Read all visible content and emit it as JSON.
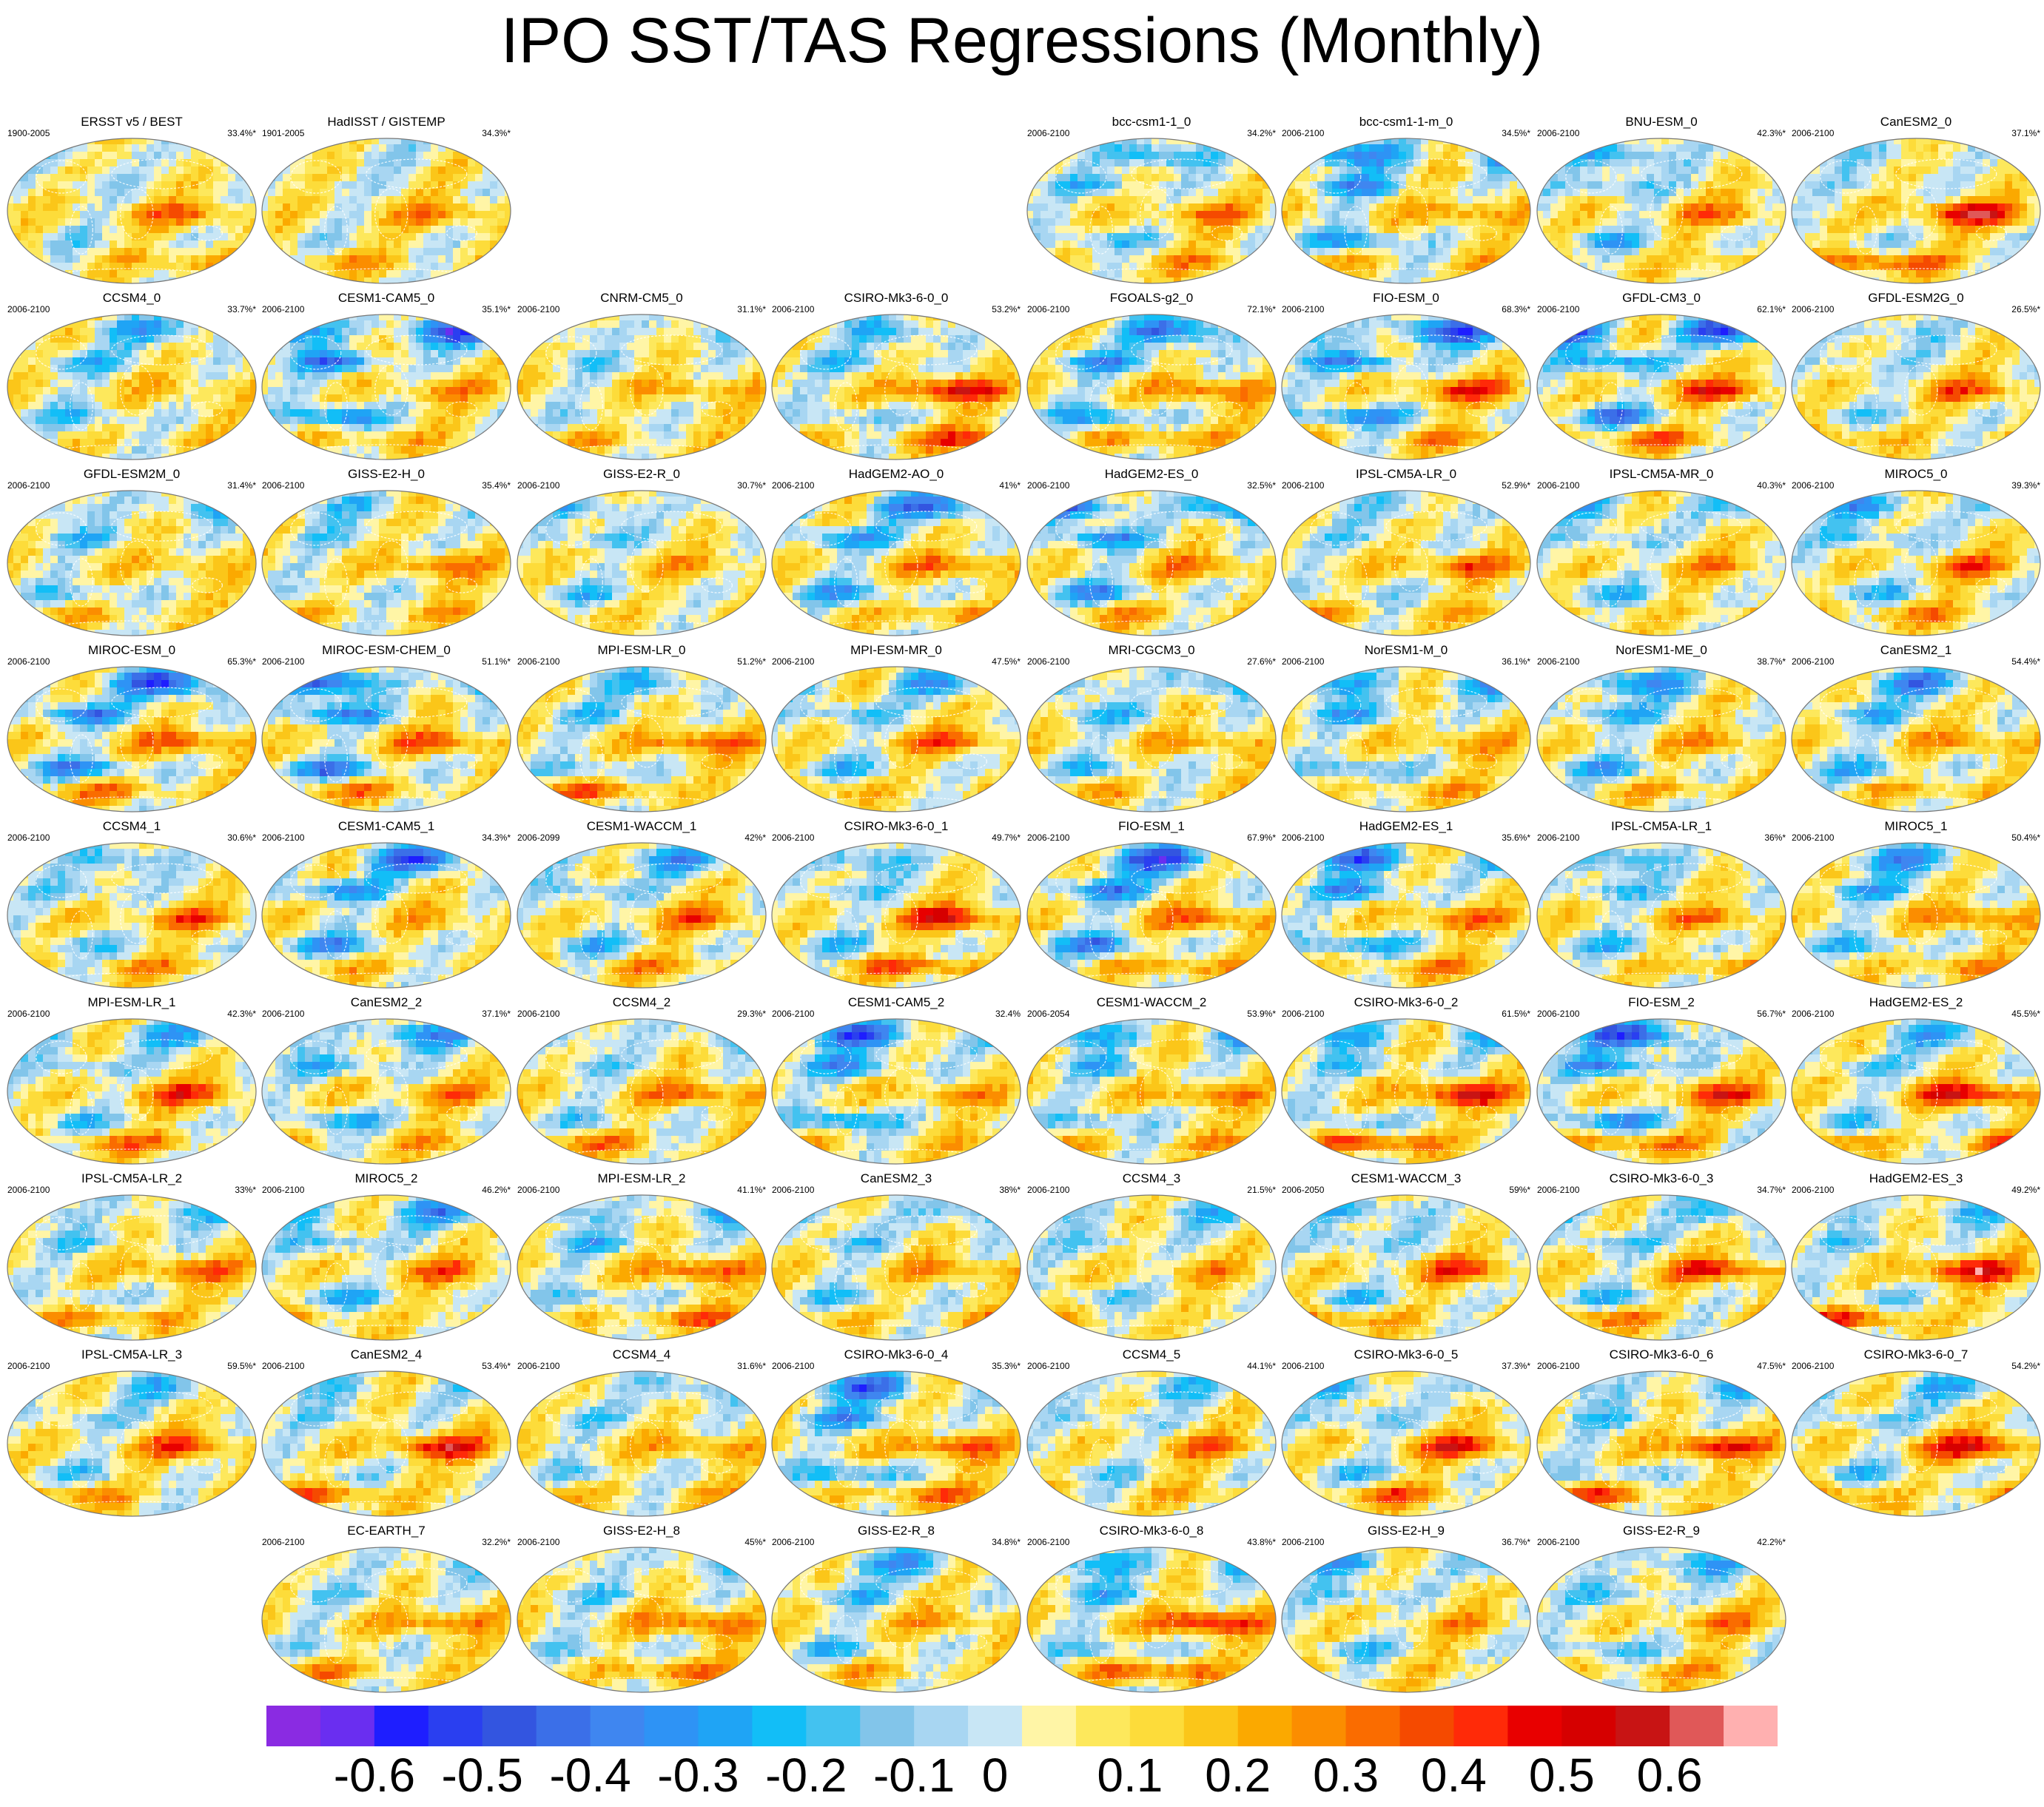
{
  "title": "IPO SST/TAS Regressions (Monthly)",
  "chart_data": {
    "type": "heatmap",
    "title": "IPO SST/TAS Regressions (Monthly)",
    "colorbar": {
      "colors": [
        "#8a2be2",
        "#6a2ef0",
        "#1e1eff",
        "#2a3ff0",
        "#3355e0",
        "#3b6fe8",
        "#3f86f0",
        "#2e93f5",
        "#1fa4f5",
        "#12bef7",
        "#43c2f0",
        "#82c5ea",
        "#a8d6f2",
        "#c8e6f5",
        "#fff5a6",
        "#fde85c",
        "#fddc3a",
        "#fbc619",
        "#fba900",
        "#fb8d00",
        "#fa6c00",
        "#f54a00",
        "#ff2a08",
        "#e80000",
        "#d60000",
        "#c81414",
        "#e05858",
        "#ffb0b0"
      ],
      "tick_labels": [
        "-0.6",
        "-0.5",
        "-0.4",
        "-0.3",
        "-0.2",
        "-0.1",
        "0",
        "0.1",
        "0.2",
        "0.3",
        "0.4",
        "0.5",
        "0.6"
      ],
      "tick_values": [
        -0.6,
        -0.5,
        -0.4,
        -0.3,
        -0.2,
        -0.1,
        0,
        0.1,
        0.2,
        0.3,
        0.4,
        0.5,
        0.6
      ],
      "range": [
        -0.65,
        0.65
      ]
    },
    "panels": [
      {
        "model": "ERSST v5 / BEST",
        "period": "1900-2005",
        "pct": "33.4%*",
        "warm": 0.35,
        "cold": 0.15
      },
      {
        "model": "HadISST / GISTEMP",
        "period": "1901-2005",
        "pct": "34.3%*",
        "warm": 0.3,
        "cold": 0.1
      },
      {
        "model": "bcc-csm1-1_0",
        "period": "2006-2100",
        "pct": "34.2%*",
        "warm": 0.3,
        "cold": 0.35
      },
      {
        "model": "bcc-csm1-1-m_0",
        "period": "2006-2100",
        "pct": "34.5%*",
        "warm": 0.3,
        "cold": 0.5
      },
      {
        "model": "BNU-ESM_0",
        "period": "2006-2100",
        "pct": "42.3%*",
        "warm": 0.3,
        "cold": 0.35
      },
      {
        "model": "CanESM2_0",
        "period": "2006-2100",
        "pct": "37.1%*",
        "warm": 0.6,
        "cold": 0.15
      },
      {
        "model": "CCSM4_0",
        "period": "2006-2100",
        "pct": "33.7%*",
        "warm": 0.15,
        "cold": 0.35
      },
      {
        "model": "CESM1-CAM5_0",
        "period": "2006-2100",
        "pct": "35.1%*",
        "warm": 0.25,
        "cold": 0.6
      },
      {
        "model": "CNRM-CM5_0",
        "period": "2006-2100",
        "pct": "31.1%*",
        "warm": 0.25,
        "cold": 0.2
      },
      {
        "model": "CSIRO-Mk3-6-0_0",
        "period": "2006-2100",
        "pct": "53.2%*",
        "warm": 0.6,
        "cold": 0.3
      },
      {
        "model": "FGOALS-g2_0",
        "period": "2006-2100",
        "pct": "72.1%*",
        "warm": 0.4,
        "cold": 0.5
      },
      {
        "model": "FIO-ESM_0",
        "period": "2006-2100",
        "pct": "68.3%*",
        "warm": 0.45,
        "cold": 0.6
      },
      {
        "model": "GFDL-CM3_0",
        "period": "2006-2100",
        "pct": "62.1%*",
        "warm": 0.45,
        "cold": 0.6
      },
      {
        "model": "GFDL-ESM2G_0",
        "period": "2006-2100",
        "pct": "26.5%*",
        "warm": 0.35,
        "cold": 0.2
      },
      {
        "model": "GFDL-ESM2M_0",
        "period": "2006-2100",
        "pct": "31.4%*",
        "warm": 0.2,
        "cold": 0.3
      },
      {
        "model": "GISS-E2-H_0",
        "period": "2006-2100",
        "pct": "35.4%*",
        "warm": 0.35,
        "cold": 0.2
      },
      {
        "model": "GISS-E2-R_0",
        "period": "2006-2100",
        "pct": "30.7%*",
        "warm": 0.2,
        "cold": 0.3
      },
      {
        "model": "HadGEM2-AO_0",
        "period": "2006-2100",
        "pct": "41%*",
        "warm": 0.35,
        "cold": 0.5
      },
      {
        "model": "HadGEM2-ES_0",
        "period": "2006-2100",
        "pct": "32.5%*",
        "warm": 0.3,
        "cold": 0.55
      },
      {
        "model": "IPSL-CM5A-LR_0",
        "period": "2006-2100",
        "pct": "52.9%*",
        "warm": 0.4,
        "cold": 0.2
      },
      {
        "model": "IPSL-CM5A-MR_0",
        "period": "2006-2100",
        "pct": "40.3%*",
        "warm": 0.25,
        "cold": 0.3
      },
      {
        "model": "MIROC5_0",
        "period": "2006-2100",
        "pct": "39.3%*",
        "warm": 0.35,
        "cold": 0.35
      },
      {
        "model": "MIROC-ESM_0",
        "period": "2006-2100",
        "pct": "65.3%*",
        "warm": 0.4,
        "cold": 0.6
      },
      {
        "model": "MIROC-ESM-CHEM_0",
        "period": "2006-2100",
        "pct": "51.1%*",
        "warm": 0.4,
        "cold": 0.6
      },
      {
        "model": "MPI-ESM-LR_0",
        "period": "2006-2100",
        "pct": "51.2%*",
        "warm": 0.45,
        "cold": 0.3
      },
      {
        "model": "MPI-ESM-MR_0",
        "period": "2006-2100",
        "pct": "47.5%*",
        "warm": 0.35,
        "cold": 0.35
      },
      {
        "model": "MRI-CGCM3_0",
        "period": "2006-2100",
        "pct": "27.6%*",
        "warm": 0.25,
        "cold": 0.35
      },
      {
        "model": "NorESM1-M_0",
        "period": "2006-2100",
        "pct": "36.1%*",
        "warm": 0.25,
        "cold": 0.4
      },
      {
        "model": "NorESM1-ME_0",
        "period": "2006-2100",
        "pct": "38.7%*",
        "warm": 0.25,
        "cold": 0.45
      },
      {
        "model": "CanESM2_1",
        "period": "2006-2100",
        "pct": "54.4%*",
        "warm": 0.3,
        "cold": 0.4
      },
      {
        "model": "CCSM4_1",
        "period": "2006-2100",
        "pct": "30.6%*",
        "warm": 0.35,
        "cold": 0.3
      },
      {
        "model": "CESM1-CAM5_1",
        "period": "2006-2100",
        "pct": "34.3%*",
        "warm": 0.2,
        "cold": 0.55
      },
      {
        "model": "CESM1-WACCM_1",
        "period": "2006-2099",
        "pct": "42%*",
        "warm": 0.35,
        "cold": 0.35
      },
      {
        "model": "CSIRO-Mk3-6-0_1",
        "period": "2006-2100",
        "pct": "49.7%*",
        "warm": 0.55,
        "cold": 0.3
      },
      {
        "model": "FIO-ESM_1",
        "period": "2006-2100",
        "pct": "67.9%*",
        "warm": 0.4,
        "cold": 0.6
      },
      {
        "model": "HadGEM2-ES_1",
        "period": "2006-2100",
        "pct": "35.6%*",
        "warm": 0.35,
        "cold": 0.5
      },
      {
        "model": "IPSL-CM5A-LR_1",
        "period": "2006-2100",
        "pct": "36%*",
        "warm": 0.3,
        "cold": 0.35
      },
      {
        "model": "MIROC5_1",
        "period": "2006-2100",
        "pct": "50.4%*",
        "warm": 0.35,
        "cold": 0.4
      },
      {
        "model": "MPI-ESM-LR_1",
        "period": "2006-2100",
        "pct": "42.3%*",
        "warm": 0.45,
        "cold": 0.3
      },
      {
        "model": "CanESM2_2",
        "period": "2006-2100",
        "pct": "37.1%*",
        "warm": 0.3,
        "cold": 0.45
      },
      {
        "model": "CCSM4_2",
        "period": "2006-2100",
        "pct": "29.3%*",
        "warm": 0.4,
        "cold": 0.25
      },
      {
        "model": "CESM1-CAM5_2",
        "period": "2006-2100",
        "pct": "32.4%",
        "warm": 0.25,
        "cold": 0.55
      },
      {
        "model": "CESM1-WACCM_2",
        "period": "2006-2054",
        "pct": "53.9%*",
        "warm": 0.35,
        "cold": 0.35
      },
      {
        "model": "CSIRO-Mk3-6-0_2",
        "period": "2006-2100",
        "pct": "61.5%*",
        "warm": 0.6,
        "cold": 0.3
      },
      {
        "model": "FIO-ESM_2",
        "period": "2006-2100",
        "pct": "56.7%*",
        "warm": 0.45,
        "cold": 0.6
      },
      {
        "model": "HadGEM2-ES_2",
        "period": "2006-2100",
        "pct": "45.5%*",
        "warm": 0.6,
        "cold": 0.3
      },
      {
        "model": "IPSL-CM5A-LR_2",
        "period": "2006-2100",
        "pct": "33%*",
        "warm": 0.4,
        "cold": 0.25
      },
      {
        "model": "MIROC5_2",
        "period": "2006-2100",
        "pct": "46.2%*",
        "warm": 0.35,
        "cold": 0.4
      },
      {
        "model": "MPI-ESM-LR_2",
        "period": "2006-2100",
        "pct": "41.1%*",
        "warm": 0.45,
        "cold": 0.35
      },
      {
        "model": "CanESM2_3",
        "period": "2006-2100",
        "pct": "38%*",
        "warm": 0.3,
        "cold": 0.3
      },
      {
        "model": "CCSM4_3",
        "period": "2006-2100",
        "pct": "21.5%*",
        "warm": 0.2,
        "cold": 0.25
      },
      {
        "model": "CESM1-WACCM_3",
        "period": "2006-2050",
        "pct": "59%*",
        "warm": 0.45,
        "cold": 0.3
      },
      {
        "model": "CSIRO-Mk3-6-0_3",
        "period": "2006-2100",
        "pct": "34.7%*",
        "warm": 0.5,
        "cold": 0.3
      },
      {
        "model": "HadGEM2-ES_3",
        "period": "2006-2100",
        "pct": "49.2%*",
        "warm": 0.6,
        "cold": 0.25
      },
      {
        "model": "IPSL-CM5A-LR_3",
        "period": "2006-2100",
        "pct": "59.5%*",
        "warm": 0.45,
        "cold": 0.25
      },
      {
        "model": "CanESM2_4",
        "period": "2006-2100",
        "pct": "53.4%*",
        "warm": 0.55,
        "cold": 0.2
      },
      {
        "model": "CCSM4_4",
        "period": "2006-2100",
        "pct": "31.6%*",
        "warm": 0.3,
        "cold": 0.25
      },
      {
        "model": "CSIRO-Mk3-6-0_4",
        "period": "2006-2100",
        "pct": "35.3%*",
        "warm": 0.45,
        "cold": 0.5
      },
      {
        "model": "CCSM4_5",
        "period": "2006-2100",
        "pct": "44.1%*",
        "warm": 0.3,
        "cold": 0.25
      },
      {
        "model": "CSIRO-Mk3-6-0_5",
        "period": "2006-2100",
        "pct": "37.3%*",
        "warm": 0.5,
        "cold": 0.3
      },
      {
        "model": "CSIRO-Mk3-6-0_6",
        "period": "2006-2100",
        "pct": "47.5%*",
        "warm": 0.55,
        "cold": 0.3
      },
      {
        "model": "CSIRO-Mk3-6-0_7",
        "period": "2006-2100",
        "pct": "54.2%*",
        "warm": 0.55,
        "cold": 0.3
      },
      {
        "model": "EC-EARTH_7",
        "period": "2006-2100",
        "pct": "32.2%*",
        "warm": 0.35,
        "cold": 0.2
      },
      {
        "model": "GISS-E2-H_8",
        "period": "2006-2100",
        "pct": "45%*",
        "warm": 0.45,
        "cold": 0.25
      },
      {
        "model": "GISS-E2-R_8",
        "period": "2006-2100",
        "pct": "34.8%*",
        "warm": 0.25,
        "cold": 0.35
      },
      {
        "model": "CSIRO-Mk3-6-0_8",
        "period": "2006-2100",
        "pct": "43.8%*",
        "warm": 0.6,
        "cold": 0.35
      },
      {
        "model": "GISS-E2-H_9",
        "period": "2006-2100",
        "pct": "36.7%*",
        "warm": 0.2,
        "cold": 0.3
      },
      {
        "model": "GISS-E2-R_9",
        "period": "2006-2100",
        "pct": "42.2%*",
        "warm": 0.3,
        "cold": 0.35
      }
    ]
  }
}
